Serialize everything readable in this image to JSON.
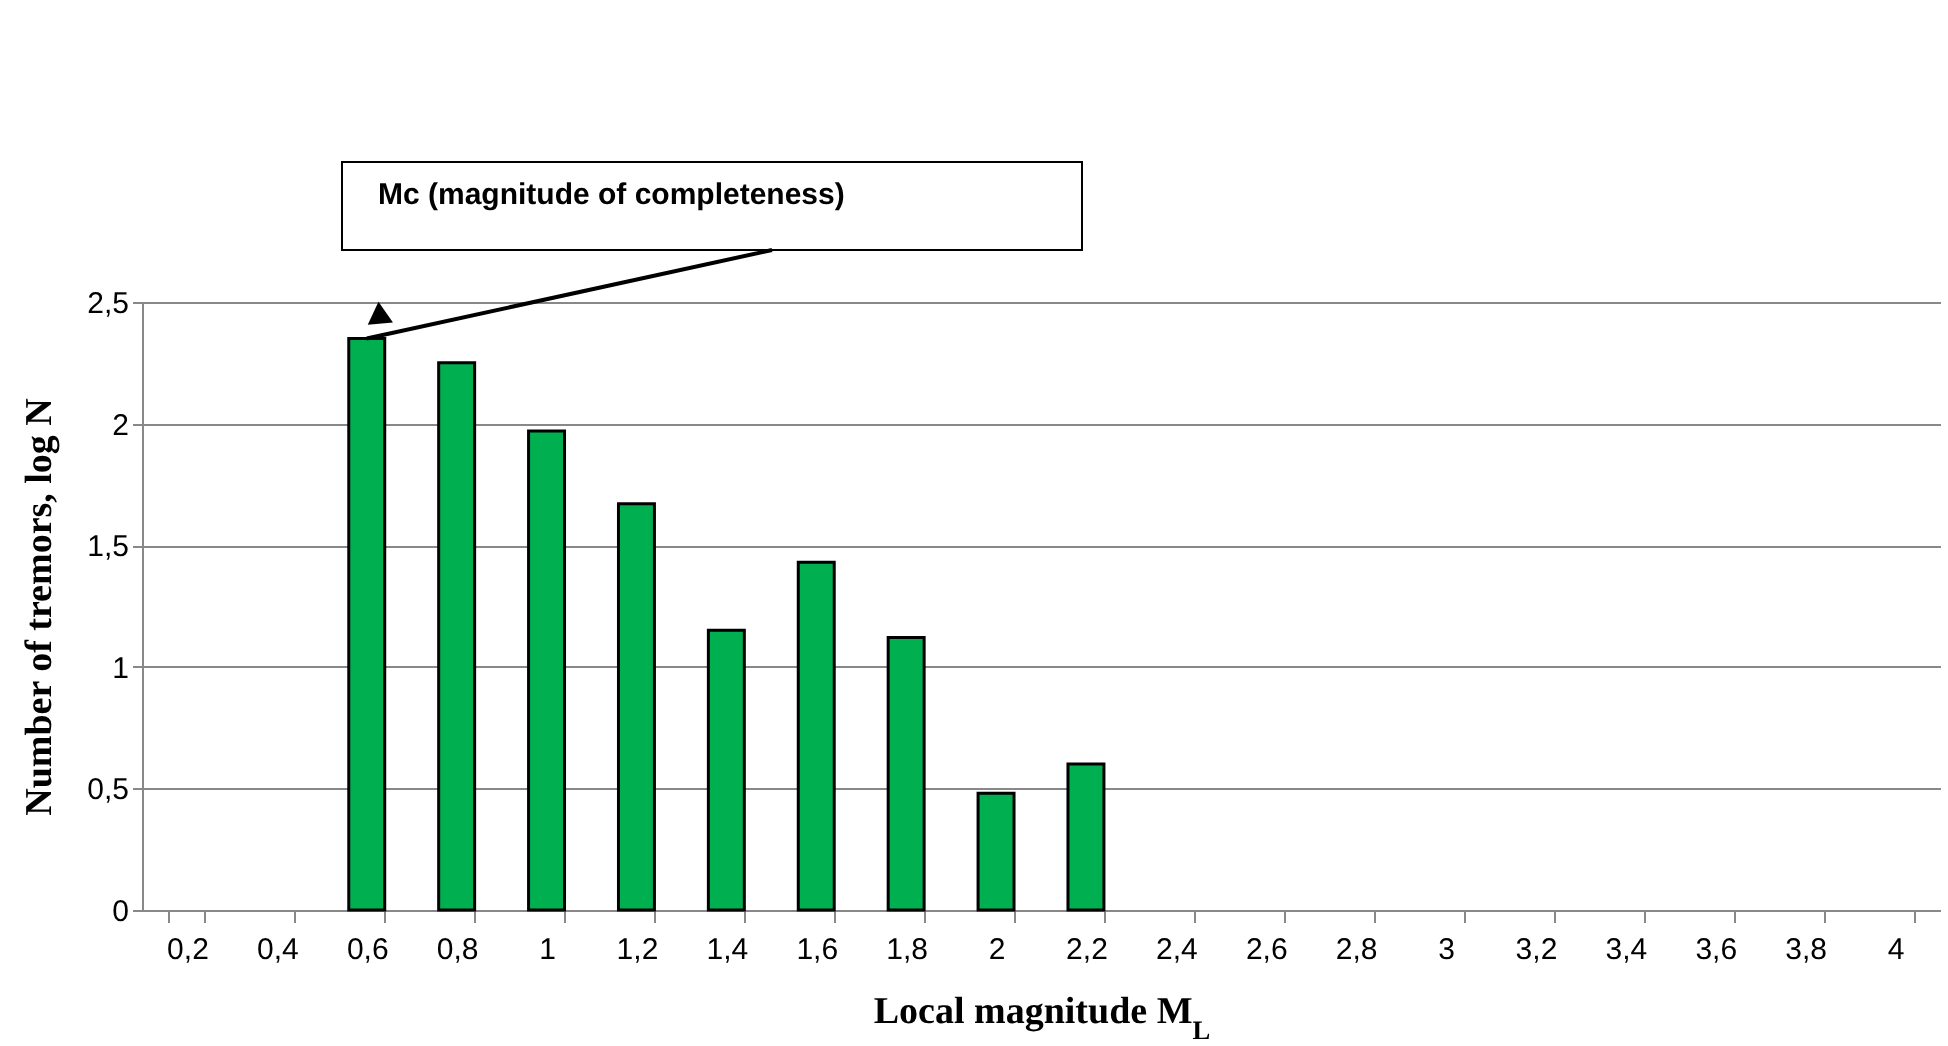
{
  "chart_data": {
    "type": "bar",
    "xlabel": "Local magnitude M$_{L}$",
    "ylabel": "Number of tremors, log N",
    "categories": [
      "0,2",
      "0,4",
      "0,6",
      "0,8",
      "1",
      "1,2",
      "1,4",
      "1,6",
      "1,8",
      "2",
      "2,2",
      "2,4",
      "2,6",
      "2,8",
      "3",
      "3,2",
      "3,4",
      "3,6",
      "3,8",
      "4"
    ],
    "values": [
      null,
      null,
      2.35,
      2.25,
      1.97,
      1.67,
      1.15,
      1.43,
      1.12,
      0.48,
      0.6,
      null,
      null,
      null,
      null,
      null,
      null,
      null,
      null,
      null
    ],
    "color": "#00b050",
    "ylim": [
      0,
      2.5
    ],
    "yticks": [
      0,
      {
        "value": 0.5,
        "label": "0,5"
      },
      1,
      {
        "value": 1.5,
        "label": "1,5"
      },
      2,
      {
        "value": 2.5,
        "label": "2,5"
      }
    ],
    "grid": "y",
    "annotations": [
      {
        "text": "Mc (magnitude of completeness)",
        "x": "0,6",
        "y": 2.35
      }
    ]
  }
}
